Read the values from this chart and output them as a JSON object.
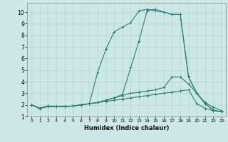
{
  "xlabel": "Humidex (Indice chaleur)",
  "xlim": [
    -0.5,
    23.5
  ],
  "ylim": [
    1.0,
    10.8
  ],
  "yticks": [
    1,
    2,
    3,
    4,
    5,
    6,
    7,
    8,
    9,
    10
  ],
  "xticks": [
    0,
    1,
    2,
    3,
    4,
    5,
    6,
    7,
    8,
    9,
    10,
    11,
    12,
    13,
    14,
    15,
    16,
    17,
    18,
    19,
    20,
    21,
    22,
    23
  ],
  "line_color": "#2d7d70",
  "bg_color": "#cce8e4",
  "grid_color": "#b8d4d0",
  "line1_x": [
    0,
    1,
    2,
    3,
    4,
    5,
    6,
    7,
    8,
    9,
    10,
    11,
    12,
    13,
    14,
    15,
    16,
    17,
    18,
    19,
    20,
    21,
    22,
    23
  ],
  "line1_y": [
    2.0,
    1.7,
    1.9,
    1.85,
    1.85,
    1.9,
    2.0,
    2.1,
    2.2,
    2.4,
    2.6,
    2.9,
    5.2,
    7.5,
    10.15,
    10.25,
    10.0,
    9.8,
    9.8,
    4.4,
    3.0,
    2.1,
    1.55,
    1.4
  ],
  "line2_x": [
    0,
    1,
    2,
    3,
    4,
    5,
    6,
    7,
    8,
    9,
    10,
    11,
    12,
    13,
    14,
    15,
    16,
    17,
    18,
    19,
    20,
    21,
    22,
    23
  ],
  "line2_y": [
    2.0,
    1.7,
    1.9,
    1.85,
    1.85,
    1.9,
    2.0,
    2.1,
    4.8,
    6.8,
    8.3,
    8.7,
    9.1,
    10.1,
    10.25,
    10.1,
    10.0,
    9.8,
    9.8,
    4.4,
    3.0,
    2.1,
    1.55,
    1.4
  ],
  "line3_x": [
    0,
    1,
    2,
    3,
    4,
    5,
    6,
    7,
    8,
    9,
    10,
    11,
    12,
    13,
    14,
    15,
    16,
    17,
    18,
    19,
    20,
    21,
    22,
    23
  ],
  "line3_y": [
    2.0,
    1.7,
    1.85,
    1.85,
    1.85,
    1.9,
    2.0,
    2.1,
    2.2,
    2.4,
    2.6,
    2.8,
    3.0,
    3.1,
    3.2,
    3.3,
    3.5,
    4.4,
    4.4,
    3.8,
    3.0,
    2.2,
    1.8,
    1.5
  ],
  "line4_x": [
    0,
    1,
    2,
    3,
    4,
    5,
    6,
    7,
    8,
    9,
    10,
    11,
    12,
    13,
    14,
    15,
    16,
    17,
    18,
    19,
    20,
    21,
    22,
    23
  ],
  "line4_y": [
    2.0,
    1.7,
    1.85,
    1.85,
    1.85,
    1.9,
    2.0,
    2.1,
    2.2,
    2.3,
    2.4,
    2.5,
    2.6,
    2.7,
    2.8,
    2.9,
    3.0,
    3.1,
    3.2,
    3.3,
    2.1,
    1.7,
    1.5,
    1.4
  ]
}
